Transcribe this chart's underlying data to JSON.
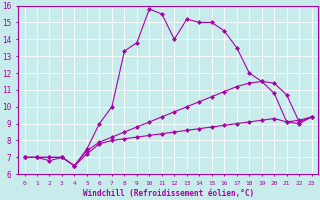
{
  "xlabel": "Windchill (Refroidissement éolien,°C)",
  "xlim": [
    -0.5,
    23.5
  ],
  "ylim": [
    6,
    16
  ],
  "xticks": [
    0,
    1,
    2,
    3,
    4,
    5,
    6,
    7,
    8,
    9,
    10,
    11,
    12,
    13,
    14,
    15,
    16,
    17,
    18,
    19,
    20,
    21,
    22,
    23
  ],
  "yticks": [
    6,
    7,
    8,
    9,
    10,
    11,
    12,
    13,
    14,
    15,
    16
  ],
  "background_color": "#c8ecec",
  "grid_color": "#ffffff",
  "line_color": "#aa00aa",
  "line1_x": [
    0,
    1,
    2,
    3,
    4,
    5,
    6,
    7,
    8,
    9,
    10,
    11,
    12,
    13,
    14,
    15,
    16,
    17,
    18,
    19,
    20,
    21,
    22,
    23
  ],
  "line1_y": [
    7.0,
    7.0,
    7.0,
    7.0,
    6.5,
    7.2,
    7.8,
    8.0,
    8.1,
    8.2,
    8.3,
    8.4,
    8.5,
    8.6,
    8.7,
    8.8,
    8.9,
    9.0,
    9.1,
    9.2,
    9.3,
    9.1,
    9.0,
    9.4
  ],
  "line2_x": [
    0,
    1,
    2,
    3,
    4,
    5,
    6,
    7,
    8,
    9,
    10,
    11,
    12,
    13,
    14,
    15,
    16,
    17,
    18,
    19,
    20,
    21,
    22,
    23
  ],
  "line2_y": [
    7.0,
    7.0,
    7.0,
    7.0,
    6.5,
    7.4,
    7.9,
    8.2,
    8.5,
    8.8,
    9.1,
    9.4,
    9.7,
    10.0,
    10.3,
    10.6,
    10.9,
    11.2,
    11.4,
    11.5,
    11.4,
    10.7,
    9.1,
    9.4
  ],
  "line3_x": [
    0,
    1,
    2,
    3,
    4,
    5,
    6,
    7,
    8,
    9,
    10,
    11,
    12,
    13,
    14,
    15,
    16,
    17,
    18,
    19,
    20,
    21,
    22,
    23
  ],
  "line3_y": [
    7.0,
    7.0,
    6.8,
    7.0,
    6.5,
    7.5,
    9.0,
    10.0,
    13.3,
    13.8,
    15.8,
    15.5,
    14.0,
    15.2,
    15.0,
    15.0,
    14.5,
    13.5,
    12.0,
    11.5,
    10.8,
    9.1,
    9.2,
    9.4
  ],
  "markersize": 2.5
}
